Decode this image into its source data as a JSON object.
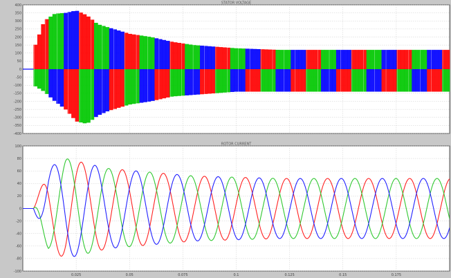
{
  "window": {
    "background": "#c8c8c8"
  },
  "chart_data": [
    {
      "type": "line",
      "title": "STATOR VOLTAGE",
      "xlabel": "",
      "ylabel": "",
      "xlim": [
        0,
        0.2
      ],
      "ylim": [
        -400,
        400
      ],
      "xticks": [
        0.025,
        0.05,
        0.075,
        0.1,
        0.125,
        0.15,
        0.175
      ],
      "xtick_labels": [
        "",
        "",
        "",
        "",
        "",
        "",
        ""
      ],
      "yticks": [
        400,
        350,
        300,
        250,
        200,
        150,
        100,
        50,
        0,
        -50,
        -100,
        -150,
        -200,
        -250,
        -300,
        -350,
        -400
      ],
      "ytick_labels": [
        "400",
        "350",
        "300",
        "250",
        "200",
        "150",
        "100",
        "50",
        "0",
        "-50",
        "-100",
        "-150",
        "-200",
        "-250",
        "-300",
        "-350",
        "-400"
      ],
      "grid": true,
      "rendering": "PWM envelope: switching pulses drawn as a filled band between +envelope and -envelope, colored by the dominant phase",
      "phase_colors": [
        "#ff0000",
        "#00c800",
        "#0000ff"
      ],
      "envelope": {
        "x": [
          0,
          0.005,
          0.01,
          0.015,
          0.02,
          0.025,
          0.03,
          0.035,
          0.04,
          0.045,
          0.05,
          0.06,
          0.07,
          0.08,
          0.09,
          0.1,
          0.12,
          0.14,
          0.16,
          0.18,
          0.2
        ],
        "upper": [
          0,
          120,
          300,
          345,
          350,
          365,
          335,
          280,
          260,
          240,
          220,
          200,
          170,
          150,
          140,
          130,
          120,
          120,
          120,
          120,
          120
        ],
        "lower": [
          0,
          -100,
          -140,
          -200,
          -250,
          -325,
          -340,
          -290,
          -260,
          -240,
          -220,
          -200,
          -170,
          -160,
          -150,
          -140,
          -140,
          -140,
          -140,
          -140,
          -140
        ]
      }
    },
    {
      "type": "line",
      "title": "ROTOR CURRENT",
      "xlabel": "",
      "ylabel": "",
      "xlim": [
        0,
        0.2
      ],
      "ylim": [
        -100,
        100
      ],
      "xticks": [
        0.025,
        0.05,
        0.075,
        0.1,
        0.125,
        0.15,
        0.175
      ],
      "xtick_labels": [
        "0.025",
        "0.05",
        "0.075",
        "0.1",
        "0.125",
        "0.15",
        "0.175"
      ],
      "yticks": [
        100,
        80,
        60,
        40,
        20,
        0,
        -20,
        -40,
        -60,
        -80,
        -100
      ],
      "ytick_labels": [
        "100",
        "80",
        "60",
        "40",
        "20",
        "0",
        "-20",
        "-40",
        "-60",
        "-80",
        "-100"
      ],
      "grid": true,
      "model": "three-phase sinusoid, ~52 Hz, amplitude rising from 0 at t=0.005 to a peak near t=0.02 and settling",
      "frequency_hz": 52,
      "start_time": 0.005,
      "amplitude": {
        "t": [
          0,
          0.005,
          0.012,
          0.02,
          0.03,
          0.04,
          0.06,
          0.08,
          0.1,
          0.12,
          0.2
        ],
        "a": [
          0,
          0,
          65,
          80,
          72,
          64,
          58,
          52,
          50,
          48,
          48
        ]
      },
      "series": [
        {
          "color": "#ff2020",
          "phase_deg": 30
        },
        {
          "color": "#30c830",
          "phase_deg": 150
        },
        {
          "color": "#2020ff",
          "phase_deg": 270
        }
      ]
    }
  ]
}
